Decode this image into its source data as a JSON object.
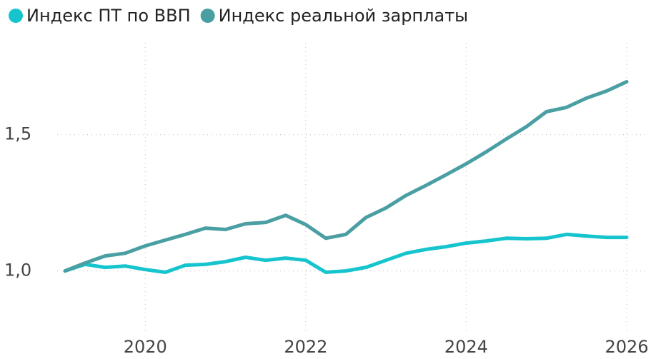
{
  "chart_data": {
    "type": "line",
    "x": [
      2019,
      2019.25,
      2019.5,
      2019.75,
      2020,
      2020.25,
      2020.5,
      2020.75,
      2021,
      2021.25,
      2021.5,
      2021.75,
      2022,
      2022.25,
      2022.5,
      2022.75,
      2023,
      2023.25,
      2023.5,
      2023.75,
      2024,
      2024.25,
      2024.5,
      2024.75,
      2025,
      2025.25,
      2025.5,
      2025.75,
      2026
    ],
    "series": [
      {
        "name": "Индекс ПТ по ВВП",
        "color": "#16c4ce",
        "values": [
          1.0,
          1.024,
          1.013,
          1.018,
          1.005,
          0.995,
          1.021,
          1.024,
          1.034,
          1.05,
          1.039,
          1.047,
          1.039,
          0.995,
          1.0,
          1.013,
          1.039,
          1.065,
          1.079,
          1.089,
          1.102,
          1.11,
          1.12,
          1.118,
          1.12,
          1.134,
          1.128,
          1.123,
          1.123
        ]
      },
      {
        "name": "Индекс реальной зарплаты",
        "color": "#4a9fa3",
        "values": [
          1.0,
          1.029,
          1.055,
          1.065,
          1.092,
          1.113,
          1.134,
          1.157,
          1.152,
          1.173,
          1.178,
          1.204,
          1.17,
          1.12,
          1.134,
          1.196,
          1.231,
          1.277,
          1.314,
          1.353,
          1.393,
          1.437,
          1.484,
          1.529,
          1.584,
          1.6,
          1.634,
          1.66,
          1.694
        ]
      }
    ],
    "xlim": [
      2019,
      2026
    ],
    "xticks": [
      2020,
      2022,
      2024,
      2026
    ],
    "ylim": [
      0.8,
      1.8
    ],
    "yticks": [
      {
        "value": 1,
        "label": "1,0"
      },
      {
        "value": 1.5,
        "label": "1,5"
      }
    ],
    "grid": true
  }
}
